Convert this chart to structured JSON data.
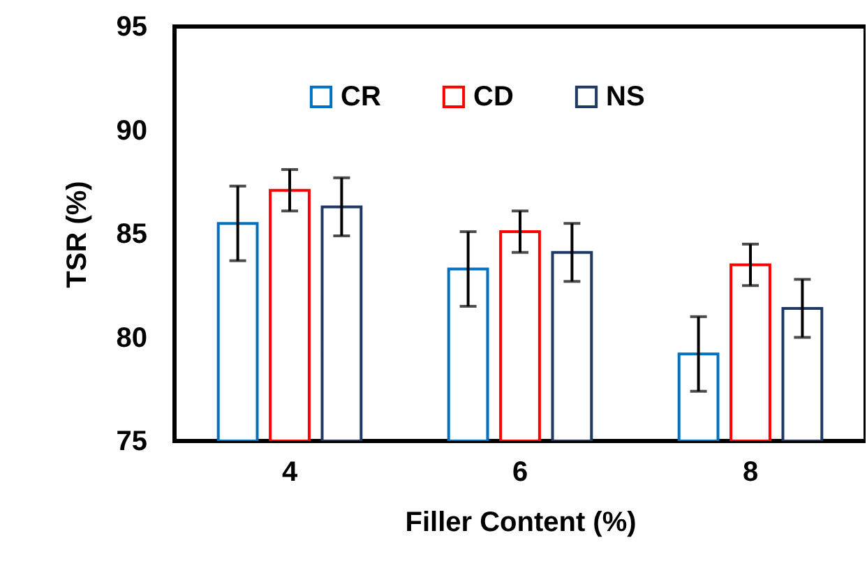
{
  "chart_data": {
    "type": "bar",
    "xlabel": "Filler Content (%)",
    "ylabel": "TSR (%)",
    "categories": [
      "4",
      "6",
      "8"
    ],
    "series": [
      {
        "name": "CR",
        "color": "#0070c0",
        "values": [
          85.5,
          83.3,
          79.2
        ],
        "errors": [
          1.8,
          1.8,
          1.8
        ]
      },
      {
        "name": "CD",
        "color": "#ff0000",
        "values": [
          87.1,
          85.1,
          83.5
        ],
        "errors": [
          1.0,
          1.0,
          1.0
        ]
      },
      {
        "name": "NS",
        "color": "#1f3864",
        "values": [
          86.3,
          84.1,
          81.4
        ],
        "errors": [
          1.4,
          1.4,
          1.4
        ]
      }
    ],
    "ylim": [
      75,
      95
    ],
    "yticks": [
      75,
      80,
      85,
      90,
      95
    ],
    "grid": false,
    "legend": "top"
  }
}
